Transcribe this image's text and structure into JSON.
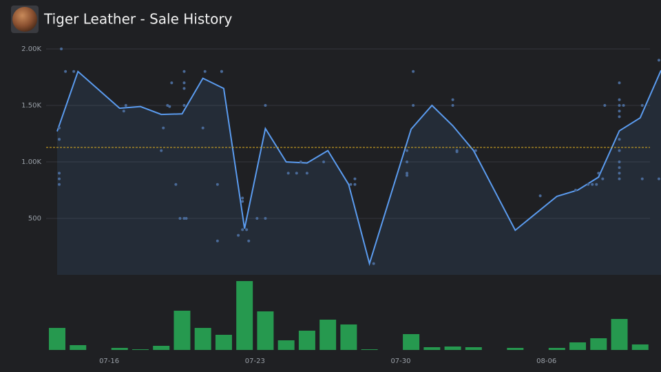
{
  "chart_data": [
    {
      "type": "line",
      "title": "Tiger Leather - Sale History",
      "x": [
        194.5,
        195.5,
        197.5,
        198.5,
        199.5,
        200.5,
        201.5,
        202.5,
        203.5,
        204.5,
        205.5,
        206.5,
        207.5,
        208.5,
        209.5,
        211.5,
        212.5,
        213.5,
        214.5,
        216.5,
        218.5,
        219.5,
        220.5,
        221.5,
        222.5,
        223.5
      ],
      "series": [
        {
          "color": "#5b9cf0",
          "values": [
            1270,
            1800,
            1475,
            1490,
            1420,
            1425,
            1740,
            1650,
            410,
            1295,
            1000,
            990,
            1100,
            800,
            100,
            1290,
            1500,
            1320,
            1100,
            395,
            695,
            750,
            865,
            1275,
            1390,
            1810
          ]
        }
      ],
      "scatter": {
        "color": "#4a6a98",
        "x": [
          194.6,
          194.6,
          194.6,
          194.6,
          194.6,
          194.6,
          194.7,
          194.9,
          195.3,
          197.7,
          197.8,
          199.5,
          199.6,
          199.8,
          199.9,
          200.0,
          200.2,
          200.4,
          200.6,
          200.7,
          200.6,
          200.6,
          200.6,
          200.6,
          201.5,
          201.6,
          202.2,
          202.2,
          202.4,
          202.4,
          203.2,
          203.4,
          203.4,
          203.4,
          203.6,
          203.7,
          204.1,
          204.5,
          204.5,
          205.6,
          206.0,
          206.2,
          206.5,
          207.3,
          208.6,
          208.8,
          208.8,
          209.7,
          211.3,
          211.3,
          211.3,
          211.3,
          211.6,
          211.6,
          213.5,
          213.5,
          213.7,
          213.7,
          214.6,
          217.7,
          219.4,
          220.0,
          220.2,
          220.4,
          220.5,
          220.7,
          220.8,
          221.5,
          221.5,
          221.5,
          221.5,
          221.5,
          221.5,
          221.5,
          221.5,
          221.5,
          221.5,
          221.5,
          221.7,
          222.6,
          222.6,
          223.4,
          223.4
        ],
        "y": [
          1300,
          1200,
          1200,
          900,
          850,
          800,
          2000,
          1800,
          1800,
          1450,
          1500,
          1100,
          1300,
          1500,
          1490,
          1700,
          800,
          500,
          500,
          500,
          1800,
          1700,
          1650,
          1500,
          1300,
          1800,
          300,
          800,
          1800,
          1800,
          350,
          680,
          650,
          400,
          400,
          300,
          500,
          500,
          1500,
          900,
          900,
          1000,
          900,
          1000,
          800,
          800,
          850,
          100,
          1100,
          1000,
          900,
          880,
          1800,
          1500,
          1550,
          1500,
          1100,
          1090,
          1100,
          700,
          750,
          800,
          800,
          800,
          900,
          850,
          1500,
          1700,
          1550,
          1500,
          1450,
          1400,
          1200,
          1100,
          1000,
          950,
          900,
          850,
          1500,
          850,
          1500,
          1900,
          850
        ]
      },
      "average": 1128,
      "average_color": "#e0b020",
      "xlim": [
        194.5,
        223.5
      ],
      "ylim": [
        0,
        2000
      ],
      "yticks": [
        {
          "value": 500,
          "label": "500"
        },
        {
          "value": 1000,
          "label": "1.00K"
        },
        {
          "value": 1500,
          "label": "1.50K"
        },
        {
          "value": 2000,
          "label": "2.00K"
        }
      ],
      "grid": true
    },
    {
      "type": "bar",
      "x": [
        194.5,
        195.5,
        197.5,
        198.5,
        199.5,
        200.5,
        201.5,
        202.5,
        203.5,
        204.5,
        205.5,
        206.5,
        207.5,
        208.5,
        209.5,
        211.5,
        212.5,
        213.5,
        214.5,
        216.5,
        218.5,
        219.5,
        220.5,
        221.5,
        222.5
      ],
      "values": [
        32,
        7,
        3,
        1,
        6,
        57,
        32,
        22,
        100,
        56,
        14,
        28,
        44,
        37,
        1,
        23,
        4,
        5,
        4,
        3,
        3,
        11,
        17,
        45,
        8
      ],
      "color": "#26994f",
      "xlim": [
        194.5,
        223.5
      ],
      "ylim": [
        0,
        100
      ],
      "xticks": [
        {
          "value": 197,
          "label": "07-16"
        },
        {
          "value": 204,
          "label": "07-23"
        },
        {
          "value": 211,
          "label": "07-30"
        },
        {
          "value": 218,
          "label": "08-06"
        }
      ]
    }
  ]
}
